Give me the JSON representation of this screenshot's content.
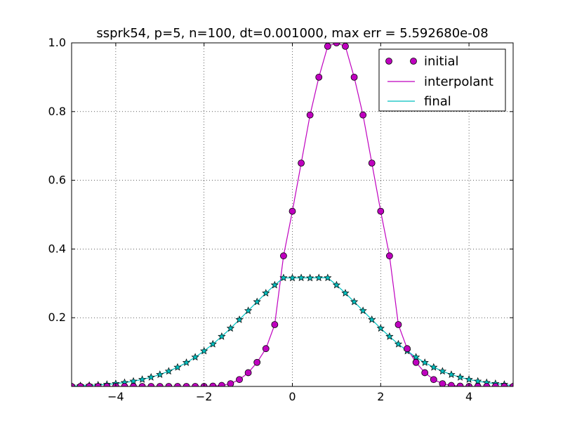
{
  "chart_data": {
    "type": "line",
    "title": "ssprk54, p=5, n=100, dt=0.001000, max err = 5.592680e-08",
    "xlabel": "",
    "ylabel": "",
    "xlim": [
      -5,
      5
    ],
    "ylim": [
      0,
      1.0
    ],
    "grid": true,
    "legend_placement": "top-right",
    "x_ticks": [
      -4,
      -2,
      0,
      2,
      4
    ],
    "x_tick_labels": [
      "−4",
      "−2",
      "0",
      "2",
      "4"
    ],
    "y_ticks": [
      0.2,
      0.4,
      0.6,
      0.8,
      1.0
    ],
    "y_tick_labels": [
      "0.2",
      "0.4",
      "0.6",
      "0.8",
      "1.0"
    ],
    "colors": {
      "initial": "#bf00bf",
      "interpolant": "#bf00bf",
      "final": "#00bfbf"
    },
    "series": [
      {
        "name": "initial",
        "style": "markers",
        "marker": "circle",
        "x": [
          -5.0,
          -4.8,
          -4.6,
          -4.4,
          -4.2,
          -4.0,
          -3.8,
          -3.6,
          -3.4,
          -3.2,
          -3.0,
          -2.8,
          -2.6,
          -2.4,
          -2.2,
          -2.0,
          -1.8,
          -1.6,
          -1.4,
          -1.2,
          -1.0,
          -0.8,
          -0.6,
          -0.4,
          -0.2,
          0.0,
          0.2,
          0.4,
          0.6,
          0.8,
          1.0,
          1.2,
          1.4,
          1.6,
          1.8,
          2.0,
          2.2,
          2.4,
          2.6,
          2.8,
          3.0,
          3.2,
          3.4,
          3.6,
          3.8,
          4.0,
          4.2,
          4.4,
          4.6,
          4.8,
          5.0
        ],
        "y": [
          0,
          0,
          0,
          0,
          0,
          0,
          0,
          0,
          0,
          0,
          0,
          0,
          0,
          0,
          0,
          0,
          0.001,
          0.003,
          0.008,
          0.02,
          0.04,
          0.07,
          0.11,
          0.18,
          0.38,
          0.51,
          0.65,
          0.79,
          0.9,
          0.99,
          1.0,
          0.99,
          0.9,
          0.79,
          0.65,
          0.51,
          0.38,
          0.18,
          0.11,
          0.07,
          0.04,
          0.02,
          0.008,
          0.003,
          0.001,
          0,
          0,
          0,
          0,
          0,
          0
        ]
      },
      {
        "name": "interpolant",
        "style": "line",
        "x": [
          -5.0,
          -4.8,
          -4.6,
          -4.4,
          -4.2,
          -4.0,
          -3.8,
          -3.6,
          -3.4,
          -3.2,
          -3.0,
          -2.8,
          -2.6,
          -2.4,
          -2.2,
          -2.0,
          -1.8,
          -1.6,
          -1.4,
          -1.2,
          -1.0,
          -0.8,
          -0.6,
          -0.4,
          -0.2,
          0.0,
          0.2,
          0.4,
          0.6,
          0.8,
          1.0,
          1.2,
          1.4,
          1.6,
          1.8,
          2.0,
          2.2,
          2.4,
          2.6,
          2.8,
          3.0,
          3.2,
          3.4,
          3.6,
          3.8,
          4.0,
          4.2,
          4.4,
          4.6,
          4.8,
          5.0
        ],
        "y": [
          0,
          0,
          0,
          0,
          0,
          0,
          0,
          0,
          0,
          0,
          0,
          0,
          0,
          0,
          0,
          0,
          0.001,
          0.003,
          0.008,
          0.02,
          0.04,
          0.07,
          0.11,
          0.18,
          0.38,
          0.51,
          0.65,
          0.79,
          0.9,
          0.99,
          1.0,
          0.99,
          0.9,
          0.79,
          0.65,
          0.51,
          0.38,
          0.18,
          0.11,
          0.07,
          0.04,
          0.02,
          0.008,
          0.003,
          0.001,
          0,
          0,
          0,
          0,
          0,
          0
        ]
      },
      {
        "name": "final",
        "style": "line+markers",
        "marker": "star",
        "x": [
          -5.0,
          -4.8,
          -4.6,
          -4.4,
          -4.2,
          -4.0,
          -3.8,
          -3.6,
          -3.4,
          -3.2,
          -3.0,
          -2.8,
          -2.6,
          -2.4,
          -2.2,
          -2.0,
          -1.8,
          -1.6,
          -1.4,
          -1.2,
          -1.0,
          -0.8,
          -0.6,
          -0.4,
          -0.2,
          0.0,
          0.2,
          0.4,
          0.6,
          0.8,
          1.0,
          1.2,
          1.4,
          1.6,
          1.8,
          2.0,
          2.2,
          2.4,
          2.6,
          2.8,
          3.0,
          3.2,
          3.4,
          3.6,
          3.8,
          4.0,
          4.2,
          4.4,
          4.6,
          4.8,
          5.0
        ],
        "y": [
          0.0014,
          0.002,
          0.0029,
          0.0042,
          0.0059,
          0.0082,
          0.0112,
          0.0152,
          0.0203,
          0.0267,
          0.0346,
          0.0443,
          0.0558,
          0.0694,
          0.0852,
          0.1032,
          0.1233,
          0.1454,
          0.1692,
          0.1944,
          0.2204,
          0.2464,
          0.2716,
          0.2952,
          0.3162,
          0.3158,
          0.3162,
          0.3158,
          0.3162,
          0.3162,
          0.2952,
          0.2716,
          0.2464,
          0.2204,
          0.1944,
          0.1692,
          0.1454,
          0.1233,
          0.1032,
          0.0852,
          0.0694,
          0.0558,
          0.0443,
          0.0346,
          0.0267,
          0.0203,
          0.0152,
          0.0112,
          0.0082,
          0.0059,
          0.0014
        ]
      }
    ]
  }
}
